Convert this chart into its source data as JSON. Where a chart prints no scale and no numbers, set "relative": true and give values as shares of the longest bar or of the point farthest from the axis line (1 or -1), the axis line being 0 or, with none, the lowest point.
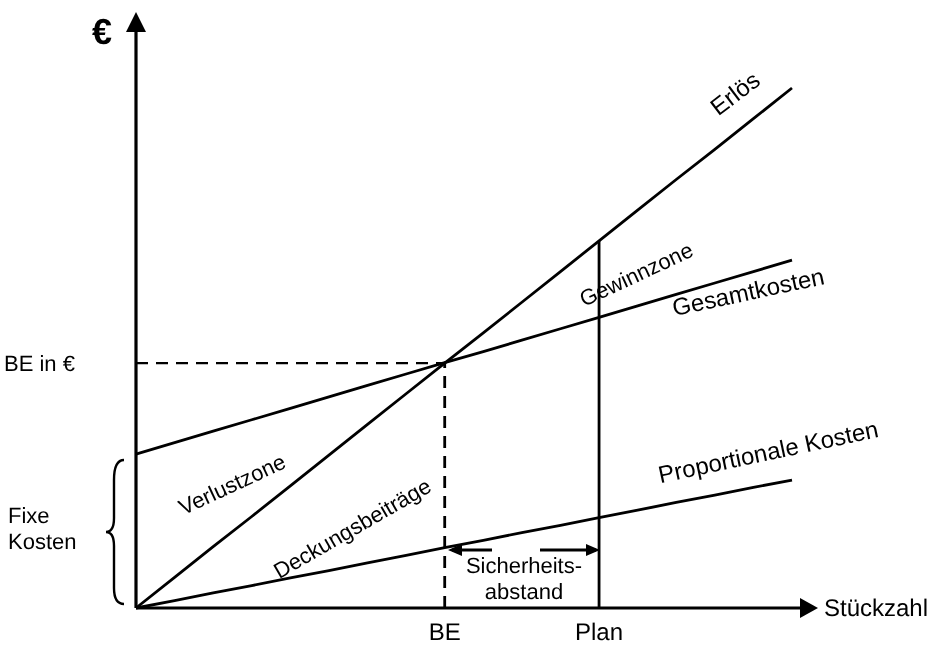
{
  "chart_data": {
    "type": "line",
    "relative": true,
    "xlabel": "Stückzahl",
    "ylabel": "€",
    "categories": [
      null,
      null,
      null,
      null,
      null,
      null,
      null,
      null,
      "BE",
      null,
      null,
      null,
      "Plan",
      null,
      null,
      null,
      null,
      null
    ],
    "series": [
      {
        "name": "Erlös",
        "color": "#000000",
        "values": [
          0,
          0.059,
          0.118,
          0.176,
          0.235,
          0.294,
          0.353,
          0.412,
          0.471,
          0.529,
          0.588,
          0.647,
          0.706,
          0.765,
          0.824,
          0.882,
          0.941,
          1
        ]
      },
      {
        "name": "Gesamtkosten",
        "color": "#000000",
        "values": [
          0.296,
          0.318,
          0.34,
          0.362,
          0.384,
          0.406,
          0.428,
          0.45,
          0.472,
          0.493,
          0.515,
          0.537,
          0.559,
          0.581,
          0.603,
          0.625,
          0.647,
          0.669
        ]
      },
      {
        "name": "Proportionale Kosten",
        "color": "#000000",
        "values": [
          0,
          0.014,
          0.029,
          0.043,
          0.058,
          0.072,
          0.087,
          0.101,
          0.116,
          0.13,
          0.145,
          0.159,
          0.174,
          0.188,
          0.203,
          0.217,
          0.232,
          0.246
        ]
      }
    ],
    "ref_lines": [
      {
        "axis": "y",
        "value": 0.471,
        "label": "BE in €",
        "line_style": "dashed"
      },
      {
        "axis": "x",
        "value": "BE",
        "line_style": "dashed"
      },
      {
        "axis": "x",
        "value": "Plan",
        "line_style": "solid"
      }
    ],
    "annotations": [
      "Gewinnzone",
      "Verlustzone",
      "Deckungsbeiträge",
      "Sicherheits-\nabstand",
      "Fixe\nKosten"
    ],
    "legend": false,
    "line_style": "solid",
    "marker": "none"
  }
}
